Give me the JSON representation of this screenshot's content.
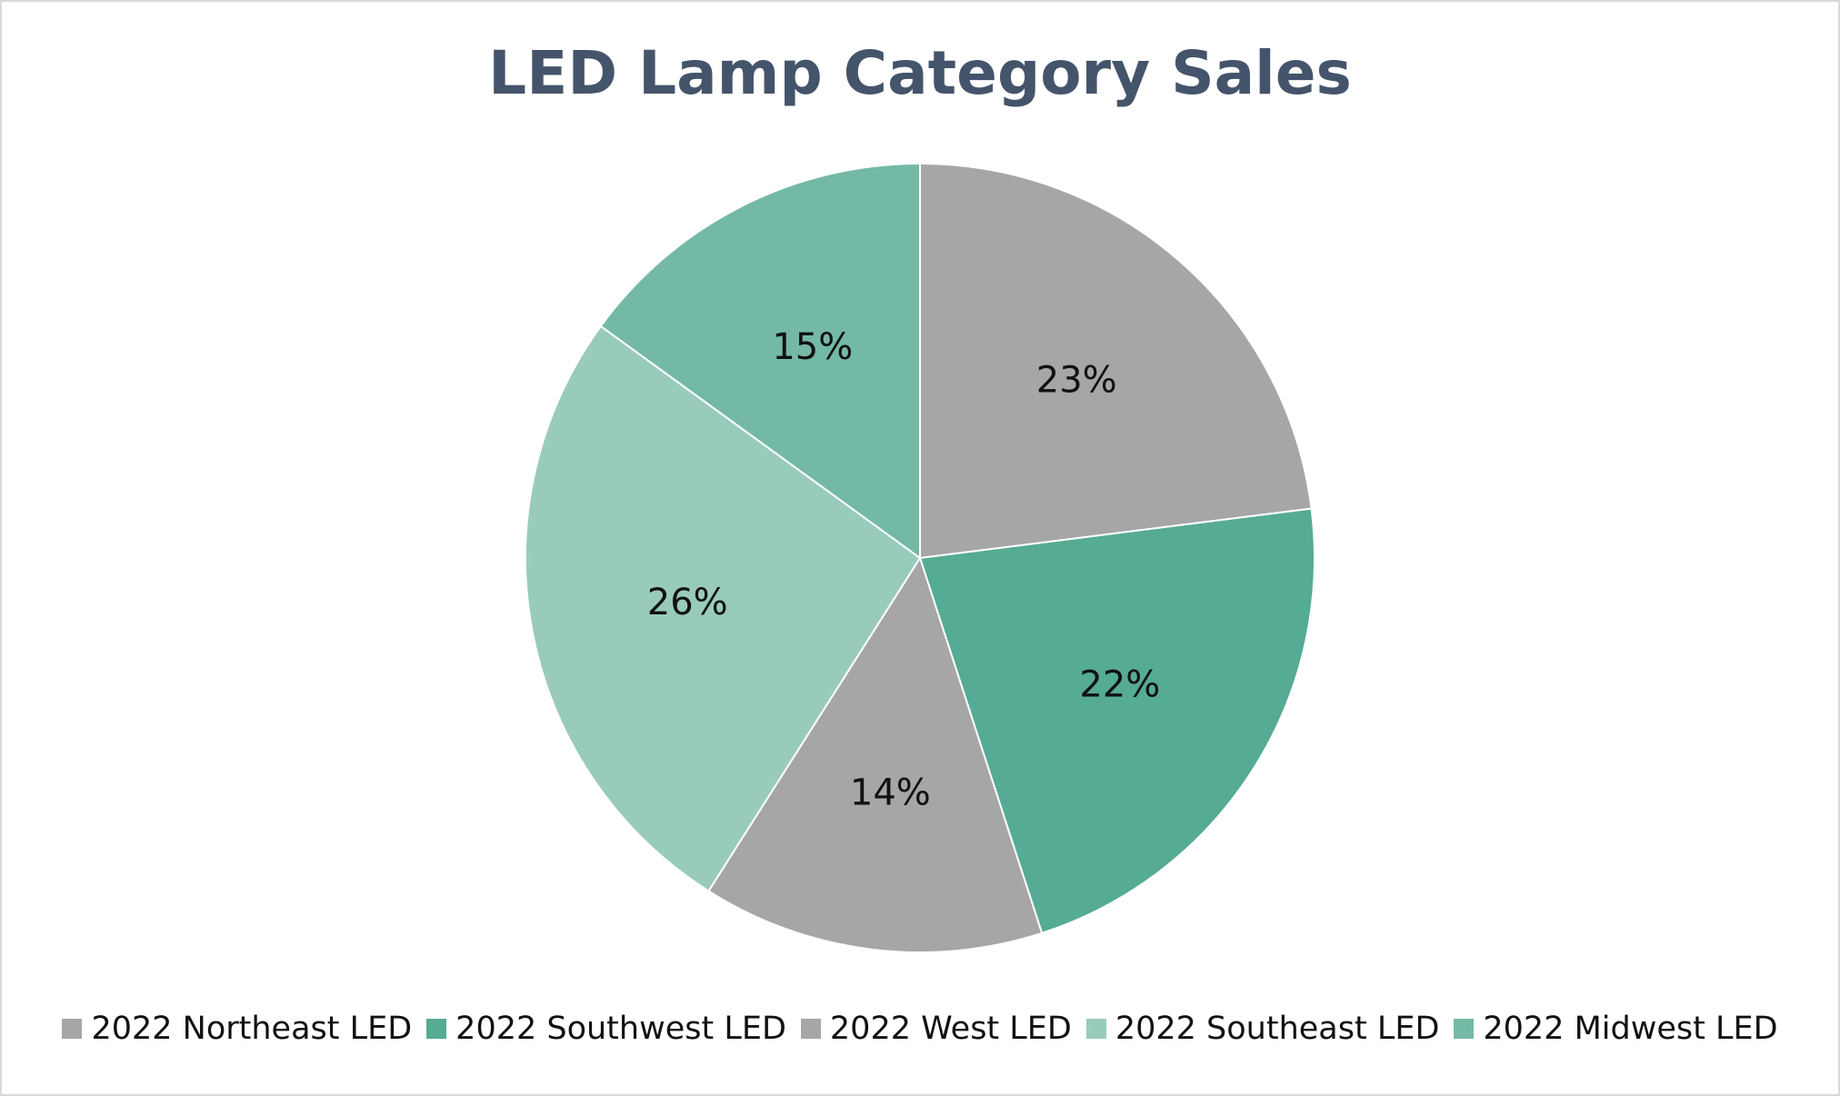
{
  "chart_data": {
    "type": "pie",
    "title": "LED Lamp Category Sales",
    "legend_position": "bottom",
    "start_angle_deg": 0,
    "direction": "clockwise",
    "slices": [
      {
        "name": "2022 Northeast LED",
        "value": 23,
        "label": "23%",
        "color": "#a6a6a6"
      },
      {
        "name": "2022 Southwest LED",
        "value": 22,
        "label": "22%",
        "color": "#55ab93"
      },
      {
        "name": "2022 West LED",
        "value": 14,
        "label": "14%",
        "color": "#a6a6a6"
      },
      {
        "name": "2022 Southeast LED",
        "value": 26,
        "label": "26%",
        "color": "#99cbbd"
      },
      {
        "name": "2022 Midwest LED",
        "value": 15,
        "label": "15%",
        "color": "#74b9a6"
      }
    ]
  }
}
